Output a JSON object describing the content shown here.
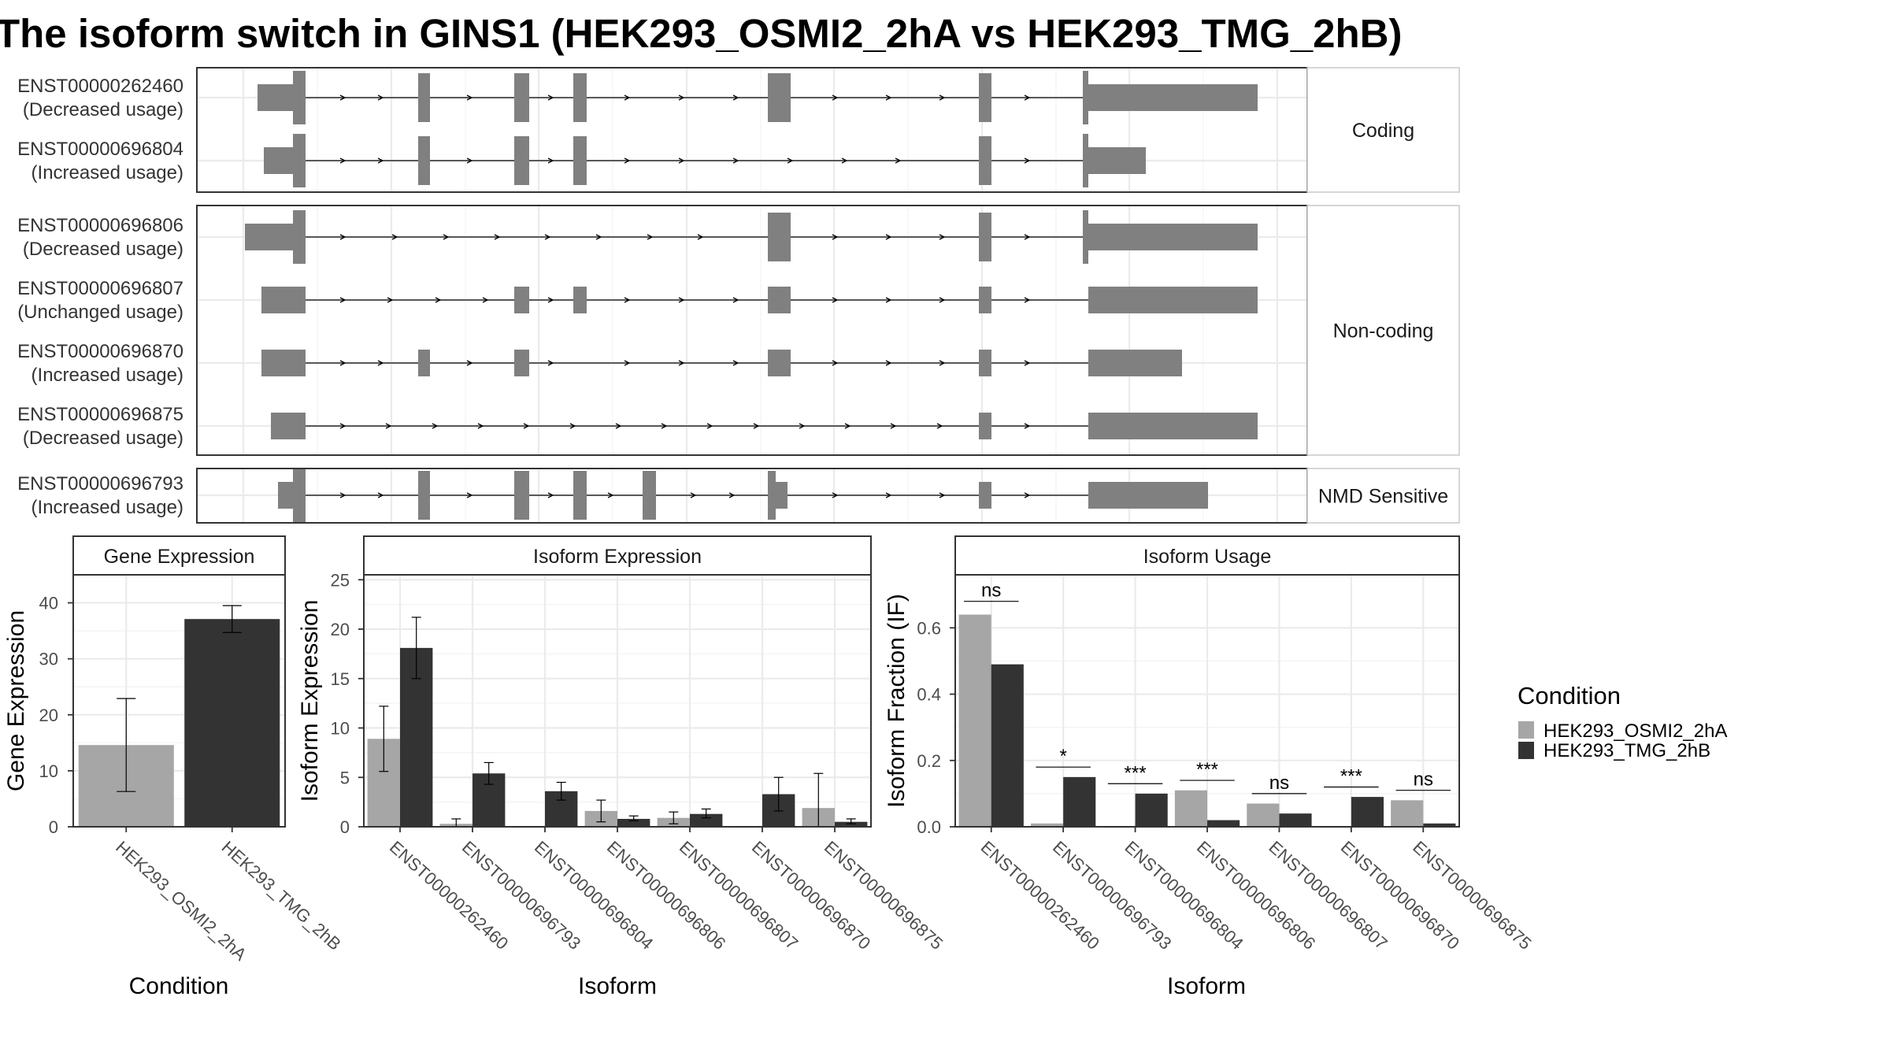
{
  "title": "The isoform switch in GINS1 (HEK293_OSMI2_2hA vs HEK293_TMG_2hB)",
  "colors": {
    "cond_a": "#a6a6a6",
    "cond_b": "#333333",
    "exon": "#808080",
    "grid": "#ebebeb",
    "border": "#333333",
    "strip_fill": "#ffffff"
  },
  "structure": {
    "groups": [
      {
        "label": "Coding",
        "transcripts": [
          {
            "id": "ENST00000262460",
            "usage": "(Decreased usage)"
          },
          {
            "id": "ENST00000696804",
            "usage": "(Increased usage)"
          }
        ]
      },
      {
        "label": "Non-coding",
        "transcripts": [
          {
            "id": "ENST00000696806",
            "usage": "(Decreased usage)"
          },
          {
            "id": "ENST00000696807",
            "usage": "(Unchanged usage)"
          },
          {
            "id": "ENST00000696870",
            "usage": "(Increased usage)"
          },
          {
            "id": "ENST00000696875",
            "usage": "(Decreased usage)"
          }
        ]
      },
      {
        "label": "NMD Sensitive",
        "transcripts": [
          {
            "id": "ENST00000696793",
            "usage": "(Increased usage)"
          }
        ]
      }
    ]
  },
  "legend": {
    "title": "Condition",
    "items": [
      "HEK293_OSMI2_2hA",
      "HEK293_TMG_2hB"
    ]
  },
  "chart_data": [
    {
      "type": "bar",
      "title": "Gene Expression",
      "xlabel": "Condition",
      "ylabel": "Gene Expression",
      "ylim": [
        0,
        45
      ],
      "yticks": [
        0,
        10,
        20,
        30,
        40
      ],
      "categories": [
        "HEK293_OSMI2_2hA",
        "HEK293_TMG_2hB"
      ],
      "values": [
        14.6,
        37.1
      ],
      "error_low": [
        6.3,
        34.7
      ],
      "error_high": [
        22.9,
        39.5
      ]
    },
    {
      "type": "bar",
      "title": "Isoform Expression",
      "xlabel": "Isoform",
      "ylabel": "Isoform Expression",
      "ylim": [
        0,
        25.5
      ],
      "yticks": [
        0,
        5,
        10,
        15,
        20,
        25
      ],
      "categories": [
        "ENST00000262460",
        "ENST00000696793",
        "ENST00000696804",
        "ENST00000696806",
        "ENST00000696807",
        "ENST00000696870",
        "ENST00000696875"
      ],
      "series": [
        {
          "name": "HEK293_OSMI2_2hA",
          "values": [
            8.9,
            0.3,
            0.0,
            1.6,
            0.9,
            0.0,
            1.9
          ],
          "error_low": [
            5.6,
            0.0,
            0.0,
            0.5,
            0.3,
            0.0,
            0.0
          ],
          "error_high": [
            12.2,
            0.8,
            0.0,
            2.7,
            1.5,
            0.0,
            5.4
          ]
        },
        {
          "name": "HEK293_TMG_2hB",
          "values": [
            18.1,
            5.4,
            3.6,
            0.8,
            1.3,
            3.3,
            0.5
          ],
          "error_low": [
            15.0,
            4.3,
            2.7,
            0.6,
            0.9,
            1.6,
            0.3
          ],
          "error_high": [
            21.2,
            6.5,
            4.5,
            1.1,
            1.8,
            5.0,
            0.8
          ]
        }
      ]
    },
    {
      "type": "bar",
      "title": "Isoform Usage",
      "xlabel": "Isoform",
      "ylabel": "Isoform Fraction (IF)",
      "ylim": [
        0,
        0.76
      ],
      "yticks": [
        "0.0",
        "0.2",
        "0.4",
        "0.6"
      ],
      "categories": [
        "ENST00000262460",
        "ENST00000696793",
        "ENST00000696804",
        "ENST00000696806",
        "ENST00000696807",
        "ENST00000696870",
        "ENST00000696875"
      ],
      "series": [
        {
          "name": "HEK293_OSMI2_2hA",
          "values": [
            0.64,
            0.01,
            0.0,
            0.11,
            0.07,
            0.0,
            0.08
          ]
        },
        {
          "name": "HEK293_TMG_2hB",
          "values": [
            0.49,
            0.15,
            0.1,
            0.02,
            0.04,
            0.09,
            0.01
          ]
        }
      ],
      "significance": [
        "ns",
        "*",
        "***",
        "***",
        "ns",
        "***",
        "ns"
      ],
      "significance_at": [
        0.68,
        0.18,
        0.13,
        0.14,
        0.1,
        0.12,
        0.11
      ]
    }
  ]
}
